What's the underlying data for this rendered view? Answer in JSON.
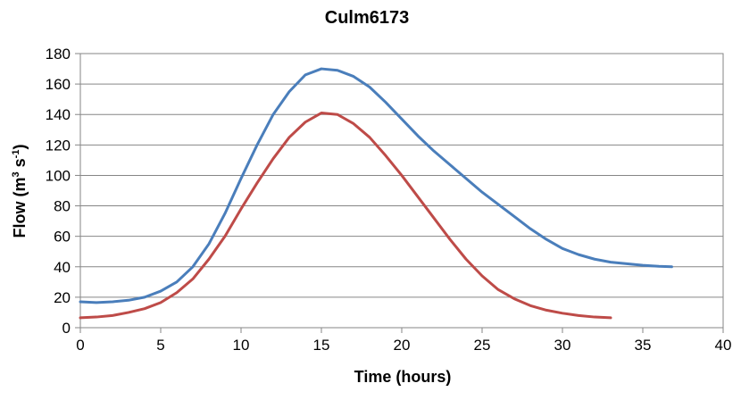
{
  "chart_data": {
    "type": "line",
    "title": "Culm6173",
    "xlabel": "Time (hours)",
    "ylabel": {
      "prefix": "Flow (m",
      "sup1": "3",
      "middle": " s",
      "sup2": "-1",
      "suffix": ")"
    },
    "xlim": [
      0,
      40
    ],
    "ylim": [
      0,
      180
    ],
    "x_ticks": [
      0,
      5,
      10,
      15,
      20,
      25,
      30,
      35,
      40
    ],
    "y_ticks": [
      0,
      20,
      40,
      60,
      80,
      100,
      120,
      140,
      160,
      180
    ],
    "grid": "horizontal",
    "legend": "none",
    "series": [
      {
        "color": "#4a7ebb",
        "x": [
          0,
          1,
          2,
          3,
          4,
          5,
          6,
          7,
          8,
          9,
          10,
          11,
          12,
          13,
          14,
          15,
          16,
          17,
          18,
          19,
          20,
          21,
          22,
          23,
          24,
          25,
          26,
          27,
          28,
          29,
          30,
          31,
          32,
          33,
          34,
          35,
          36,
          36.8
        ],
        "y": [
          17,
          16.5,
          17,
          18,
          20,
          24,
          30,
          40,
          55,
          75,
          98,
          120,
          140,
          155,
          166,
          170,
          169,
          165,
          158,
          148,
          137,
          126,
          116,
          107,
          98,
          89,
          81,
          73,
          65,
          58,
          52,
          48,
          45,
          43,
          42,
          41,
          40.3,
          40
        ]
      },
      {
        "color": "#be4b48",
        "x": [
          0,
          1,
          2,
          3,
          4,
          5,
          6,
          7,
          8,
          9,
          10,
          11,
          12,
          13,
          14,
          15,
          16,
          17,
          18,
          19,
          20,
          21,
          22,
          23,
          24,
          25,
          26,
          27,
          28,
          29,
          30,
          31,
          32,
          33
        ],
        "y": [
          6.5,
          7,
          8,
          10,
          12.5,
          16.5,
          23,
          32,
          45,
          60,
          78,
          95,
          111,
          125,
          135,
          141,
          140,
          134,
          125,
          113,
          100,
          86,
          72,
          58,
          45,
          34,
          25,
          19,
          14.5,
          11.5,
          9.5,
          8,
          7,
          6.5
        ]
      }
    ]
  }
}
